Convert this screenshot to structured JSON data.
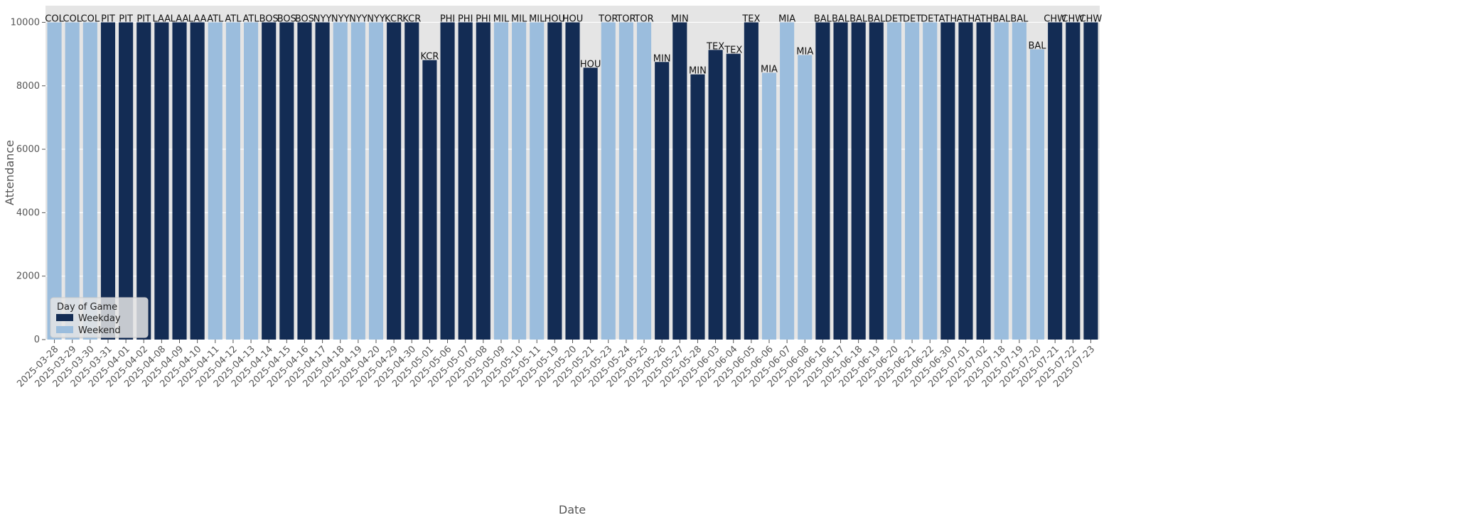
{
  "chart_data": {
    "type": "bar",
    "title": "",
    "xlabel": "Date",
    "ylabel": "Attendance",
    "ylim": [
      0,
      10525
    ],
    "yticks": [
      0,
      2000,
      4000,
      6000,
      8000,
      10000
    ],
    "grid": true,
    "legend": {
      "title": "Day of Game",
      "placement": "bottom-left",
      "entries": [
        {
          "name": "Weekday",
          "color": "#132c54"
        },
        {
          "name": "Weekend",
          "color": "#9bbddd"
        }
      ]
    },
    "categories": [
      "2025-03-28",
      "2025-03-29",
      "2025-03-30",
      "2025-03-31",
      "2025-04-01",
      "2025-04-02",
      "2025-04-08",
      "2025-04-09",
      "2025-04-10",
      "2025-04-11",
      "2025-04-12",
      "2025-04-13",
      "2025-04-14",
      "2025-04-15",
      "2025-04-16",
      "2025-04-17",
      "2025-04-18",
      "2025-04-19",
      "2025-04-20",
      "2025-04-29",
      "2025-04-30",
      "2025-05-01",
      "2025-05-06",
      "2025-05-07",
      "2025-05-08",
      "2025-05-09",
      "2025-05-10",
      "2025-05-11",
      "2025-05-19",
      "2025-05-20",
      "2025-05-21",
      "2025-05-23",
      "2025-05-24",
      "2025-05-25",
      "2025-05-26",
      "2025-05-27",
      "2025-05-28",
      "2025-06-03",
      "2025-06-04",
      "2025-06-05",
      "2025-06-06",
      "2025-06-07",
      "2025-06-08",
      "2025-06-16",
      "2025-06-17",
      "2025-06-18",
      "2025-06-19",
      "2025-06-20",
      "2025-06-21",
      "2025-06-22",
      "2025-06-30",
      "2025-07-01",
      "2025-07-02",
      "2025-07-18",
      "2025-07-19",
      "2025-07-20",
      "2025-07-21",
      "2025-07-22",
      "2025-07-23"
    ],
    "values": [
      10000,
      10000,
      10000,
      10000,
      10000,
      10000,
      10000,
      10000,
      10000,
      10000,
      10000,
      10000,
      10000,
      10000,
      10000,
      10000,
      10000,
      10000,
      10000,
      10000,
      10000,
      8810,
      10000,
      10000,
      10000,
      10000,
      10000,
      10000,
      10000,
      10000,
      8570,
      10000,
      10000,
      10000,
      8750,
      10000,
      8360,
      9130,
      9010,
      10000,
      8410,
      10000,
      8970,
      10000,
      10000,
      10000,
      10000,
      10000,
      10000,
      10000,
      10000,
      10000,
      10000,
      10000,
      10000,
      9150,
      10000,
      10000,
      10000
    ],
    "opponents": [
      "COL",
      "COL",
      "COL",
      "PIT",
      "PIT",
      "PIT",
      "LAA",
      "LAA",
      "LAA",
      "ATL",
      "ATL",
      "ATL",
      "BOS",
      "BOS",
      "BOS",
      "NYY",
      "NYY",
      "NYY",
      "NYY",
      "KCR",
      "KCR",
      "KCR",
      "PHI",
      "PHI",
      "PHI",
      "MIL",
      "MIL",
      "MIL",
      "HOU",
      "HOU",
      "HOU",
      "TOR",
      "TOR",
      "TOR",
      "MIN",
      "MIN",
      "MIN",
      "TEX",
      "TEX",
      "TEX",
      "MIA",
      "MIA",
      "MIA",
      "BAL",
      "BAL",
      "BAL",
      "BAL",
      "DET",
      "DET",
      "DET",
      "ATH",
      "ATH",
      "ATH",
      "BAL",
      "BAL",
      "BAL",
      "CHW",
      "CHW",
      "CHW"
    ],
    "day_type": [
      "Weekend",
      "Weekend",
      "Weekend",
      "Weekday",
      "Weekday",
      "Weekday",
      "Weekday",
      "Weekday",
      "Weekday",
      "Weekend",
      "Weekend",
      "Weekend",
      "Weekday",
      "Weekday",
      "Weekday",
      "Weekday",
      "Weekend",
      "Weekend",
      "Weekend",
      "Weekday",
      "Weekday",
      "Weekday",
      "Weekday",
      "Weekday",
      "Weekday",
      "Weekend",
      "Weekend",
      "Weekend",
      "Weekday",
      "Weekday",
      "Weekday",
      "Weekend",
      "Weekend",
      "Weekend",
      "Weekday",
      "Weekday",
      "Weekday",
      "Weekday",
      "Weekday",
      "Weekday",
      "Weekend",
      "Weekend",
      "Weekend",
      "Weekday",
      "Weekday",
      "Weekday",
      "Weekday",
      "Weekend",
      "Weekend",
      "Weekend",
      "Weekday",
      "Weekday",
      "Weekday",
      "Weekend",
      "Weekend",
      "Weekend",
      "Weekday",
      "Weekday",
      "Weekday"
    ]
  }
}
